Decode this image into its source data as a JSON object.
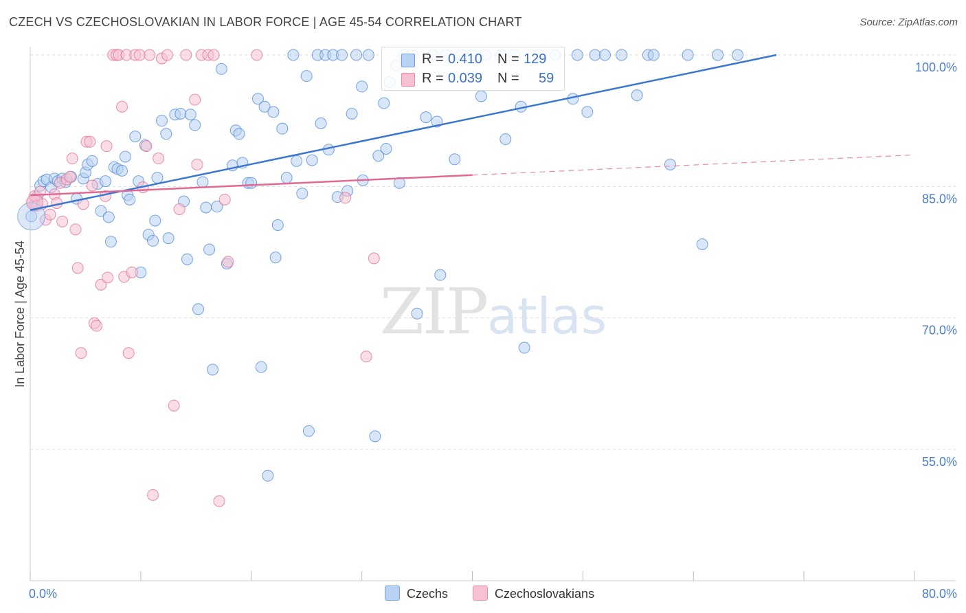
{
  "title": "CZECH VS CZECHOSLOVAKIAN IN LABOR FORCE | AGE 45-54 CORRELATION CHART",
  "source": "Source: ZipAtlas.com",
  "watermark": {
    "zip": "ZIP",
    "atlas": "atlas"
  },
  "legend_top": [
    {
      "r_label": "R =",
      "r_value": "0.410",
      "n_label": "N =",
      "n_value": "129",
      "color": "#6fa0e0",
      "fill": "#b9d1f2"
    },
    {
      "r_label": "R =",
      "r_value": "0.039",
      "n_label": "N =",
      "n_value": "59",
      "color": "#e88aa8",
      "fill": "#f6c2d2"
    }
  ],
  "legend_bottom": [
    {
      "label": "Czechs",
      "color": "#6fa0e0",
      "fill": "#b9d1f2"
    },
    {
      "label": "Czechoslovakians",
      "color": "#e88aa8",
      "fill": "#f6c2d2"
    }
  ],
  "chart_data": {
    "type": "scatter",
    "title": "CZECH VS CZECHOSLOVAKIAN IN LABOR FORCE | AGE 45-54 CORRELATION CHART",
    "xlabel": "",
    "ylabel": "In Labor Force | Age 45-54",
    "xlim": [
      0,
      80
    ],
    "ylim": [
      40,
      102
    ],
    "x_tick_labels": [
      "0.0%",
      "80.0%"
    ],
    "y_ticks": [
      55,
      70,
      85,
      100
    ],
    "y_tick_labels": [
      "55.0%",
      "70.0%",
      "85.0%",
      "100.0%"
    ],
    "series": [
      {
        "name": "Czechs",
        "color": "#4a86d8",
        "fill": "#b9d1f2",
        "trend": {
          "x": [
            0,
            67.5
          ],
          "y": [
            82.3,
            100.0
          ]
        },
        "points": [
          [
            0.1,
            81.6
          ],
          [
            0.4,
            82.9
          ],
          [
            0.6,
            83.8
          ],
          [
            0.9,
            85.1
          ],
          [
            1.2,
            85.6
          ],
          [
            1.5,
            85.8
          ],
          [
            1.9,
            84.9
          ],
          [
            2.2,
            85.9
          ],
          [
            2.5,
            85.6
          ],
          [
            2.9,
            85.9
          ],
          [
            3.2,
            85.5
          ],
          [
            3.7,
            86.1
          ],
          [
            4.2,
            83.6
          ],
          [
            4.8,
            85.9
          ],
          [
            5.0,
            86.6
          ],
          [
            5.2,
            87.5
          ],
          [
            5.6,
            87.9
          ],
          [
            6.1,
            85.3
          ],
          [
            6.4,
            82.2
          ],
          [
            6.8,
            85.6
          ],
          [
            7.1,
            81.5
          ],
          [
            7.3,
            78.7
          ],
          [
            7.6,
            87.2
          ],
          [
            7.9,
            87.0
          ],
          [
            8.3,
            86.8
          ],
          [
            8.6,
            88.4
          ],
          [
            8.8,
            84.0
          ],
          [
            9.0,
            83.5
          ],
          [
            9.5,
            90.7
          ],
          [
            9.8,
            85.6
          ],
          [
            10.0,
            75.2
          ],
          [
            10.4,
            89.7
          ],
          [
            10.7,
            79.5
          ],
          [
            11.1,
            78.8
          ],
          [
            11.3,
            81.1
          ],
          [
            11.5,
            86.0
          ],
          [
            11.9,
            92.5
          ],
          [
            12.3,
            91.0
          ],
          [
            12.5,
            79.1
          ],
          [
            13.1,
            93.2
          ],
          [
            13.6,
            93.3
          ],
          [
            13.9,
            83.3
          ],
          [
            14.2,
            76.7
          ],
          [
            14.5,
            93.2
          ],
          [
            14.9,
            92.0
          ],
          [
            15.2,
            71.0
          ],
          [
            15.6,
            85.5
          ],
          [
            15.9,
            82.6
          ],
          [
            16.2,
            77.8
          ],
          [
            16.5,
            64.1
          ],
          [
            16.9,
            82.7
          ],
          [
            17.3,
            98.4
          ],
          [
            17.8,
            76.2
          ],
          [
            18.3,
            87.4
          ],
          [
            18.6,
            91.4
          ],
          [
            18.9,
            91.0
          ],
          [
            19.2,
            87.7
          ],
          [
            19.7,
            85.4
          ],
          [
            20.0,
            85.4
          ],
          [
            20.6,
            95.0
          ],
          [
            20.9,
            64.4
          ],
          [
            21.2,
            94.1
          ],
          [
            21.5,
            52.0
          ],
          [
            22.0,
            93.5
          ],
          [
            22.2,
            76.9
          ],
          [
            22.4,
            80.6
          ],
          [
            22.8,
            91.6
          ],
          [
            23.2,
            86.0
          ],
          [
            23.8,
            100.0
          ],
          [
            24.1,
            87.9
          ],
          [
            24.6,
            84.2
          ],
          [
            25.0,
            97.6
          ],
          [
            25.2,
            57.1
          ],
          [
            25.5,
            88.0
          ],
          [
            26.0,
            100.0
          ],
          [
            26.3,
            92.2
          ],
          [
            26.7,
            100.0
          ],
          [
            27.0,
            89.2
          ],
          [
            27.4,
            100.0
          ],
          [
            27.8,
            83.8
          ],
          [
            28.2,
            100.0
          ],
          [
            28.7,
            84.5
          ],
          [
            29.1,
            93.3
          ],
          [
            29.5,
            100.0
          ],
          [
            30.0,
            96.4
          ],
          [
            30.1,
            85.7
          ],
          [
            30.6,
            100.0
          ],
          [
            31.2,
            56.5
          ],
          [
            31.5,
            88.5
          ],
          [
            32.0,
            94.5
          ],
          [
            32.2,
            89.3
          ],
          [
            32.5,
            96.9
          ],
          [
            33.1,
            98.8
          ],
          [
            33.4,
            85.4
          ],
          [
            33.8,
            100.0
          ],
          [
            34.6,
            100.0
          ],
          [
            35.0,
            70.5
          ],
          [
            35.8,
            92.9
          ],
          [
            36.4,
            100.0
          ],
          [
            36.8,
            92.4
          ],
          [
            37.1,
            74.9
          ],
          [
            37.6,
            100.0
          ],
          [
            38.4,
            88.1
          ],
          [
            39.0,
            100.0
          ],
          [
            40.0,
            100.0
          ],
          [
            40.8,
            95.3
          ],
          [
            41.2,
            100.0
          ],
          [
            42.6,
            100.0
          ],
          [
            43.0,
            90.4
          ],
          [
            43.8,
            100.0
          ],
          [
            44.4,
            94.1
          ],
          [
            44.7,
            66.6
          ],
          [
            46.0,
            100.0
          ],
          [
            47.5,
            100.0
          ],
          [
            49.1,
            95.0
          ],
          [
            49.5,
            100.0
          ],
          [
            50.4,
            93.5
          ],
          [
            51.1,
            100.0
          ],
          [
            52.0,
            100.0
          ],
          [
            53.5,
            100.0
          ],
          [
            54.9,
            95.4
          ],
          [
            55.9,
            100.0
          ],
          [
            56.4,
            100.0
          ],
          [
            57.9,
            87.5
          ],
          [
            59.5,
            100.0
          ],
          [
            60.8,
            78.4
          ],
          [
            62.2,
            100.0
          ],
          [
            64.0,
            100.0
          ]
        ]
      },
      {
        "name": "Czechoslovakians",
        "color": "#e06a92",
        "fill": "#f6c2d2",
        "trend": {
          "x": [
            0,
            40.0
          ],
          "y": [
            84.0,
            86.3
          ]
        },
        "trend_dashed": {
          "x": [
            40.0,
            80.0
          ],
          "y": [
            86.3,
            88.6
          ]
        },
        "points": [
          [
            0.2,
            83.2
          ],
          [
            0.4,
            83.9
          ],
          [
            0.6,
            82.8
          ],
          [
            0.9,
            84.4
          ],
          [
            1.1,
            83.0
          ],
          [
            1.4,
            81.2
          ],
          [
            1.8,
            81.8
          ],
          [
            2.2,
            84.1
          ],
          [
            2.4,
            83.1
          ],
          [
            2.7,
            85.4
          ],
          [
            2.9,
            81.0
          ],
          [
            3.3,
            85.8
          ],
          [
            3.6,
            86.1
          ],
          [
            3.8,
            88.2
          ],
          [
            4.1,
            80.1
          ],
          [
            4.3,
            75.7
          ],
          [
            4.6,
            66.0
          ],
          [
            4.8,
            83.0
          ],
          [
            5.1,
            90.1
          ],
          [
            5.4,
            90.1
          ],
          [
            5.6,
            85.1
          ],
          [
            5.8,
            69.4
          ],
          [
            6.0,
            69.1
          ],
          [
            6.4,
            73.8
          ],
          [
            6.8,
            83.9
          ],
          [
            6.9,
            89.6
          ],
          [
            7.0,
            74.6
          ],
          [
            7.5,
            100.0
          ],
          [
            7.8,
            100.0
          ],
          [
            8.0,
            100.0
          ],
          [
            8.3,
            94.1
          ],
          [
            8.5,
            74.7
          ],
          [
            8.7,
            100.0
          ],
          [
            8.9,
            66.0
          ],
          [
            9.2,
            75.2
          ],
          [
            9.5,
            100.0
          ],
          [
            9.9,
            100.0
          ],
          [
            10.2,
            84.9
          ],
          [
            10.5,
            89.6
          ],
          [
            10.8,
            100.0
          ],
          [
            11.1,
            49.8
          ],
          [
            11.6,
            88.2
          ],
          [
            11.9,
            99.6
          ],
          [
            12.4,
            100.0
          ],
          [
            13.0,
            60.0
          ],
          [
            13.5,
            82.4
          ],
          [
            14.1,
            100.0
          ],
          [
            14.9,
            94.9
          ],
          [
            15.1,
            87.5
          ],
          [
            15.5,
            100.0
          ],
          [
            16.1,
            100.0
          ],
          [
            16.6,
            100.0
          ],
          [
            17.1,
            49.1
          ],
          [
            17.6,
            83.5
          ],
          [
            17.9,
            76.4
          ],
          [
            20.5,
            100.0
          ],
          [
            28.5,
            83.7
          ],
          [
            30.4,
            65.6
          ],
          [
            31.1,
            76.8
          ]
        ]
      }
    ]
  }
}
